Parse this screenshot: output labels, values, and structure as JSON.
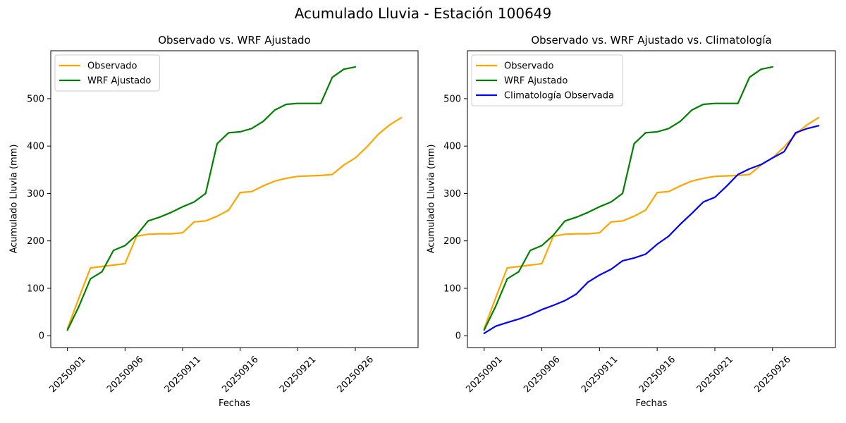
{
  "figure": {
    "title": "Acumulado Lluvia - Estación 100649"
  },
  "chart_data": [
    {
      "type": "line",
      "title": "Observado vs. WRF Ajustado",
      "xlabel": "Fechas",
      "ylabel": "Acumulado Lluvia (mm)",
      "x_tick_labels": [
        "20250901",
        "20250906",
        "20250911",
        "20250916",
        "20250921",
        "20250926"
      ],
      "x_tick_days": [
        1,
        6,
        11,
        16,
        21,
        26
      ],
      "y_ticks": [
        0,
        100,
        200,
        300,
        400,
        500
      ],
      "xlim": [
        -0.45,
        31.45
      ],
      "ylim": [
        -25,
        601
      ],
      "grid": false,
      "legend_position": "upper-left",
      "series": [
        {
          "name": "Observado",
          "color": "#FFA500",
          "start_day": 1,
          "values": [
            15,
            80,
            143,
            146,
            149,
            152,
            210,
            214,
            215,
            215,
            217,
            240,
            242,
            252,
            265,
            302,
            304,
            316,
            326,
            332,
            336,
            337,
            338,
            340,
            360,
            375,
            398,
            425,
            445,
            460
          ]
        },
        {
          "name": "WRF Ajustado",
          "color": "#008000",
          "start_day": 1,
          "values": [
            12,
            62,
            120,
            135,
            180,
            190,
            212,
            242,
            250,
            260,
            272,
            282,
            300,
            405,
            428,
            430,
            437,
            452,
            476,
            488,
            490,
            490,
            490,
            545,
            562,
            567
          ]
        }
      ]
    },
    {
      "type": "line",
      "title": "Observado vs. WRF Ajustado vs. Climatología",
      "xlabel": "Fechas",
      "ylabel": "Acumulado Lluvia (mm)",
      "x_tick_labels": [
        "20250901",
        "20250906",
        "20250911",
        "20250916",
        "20250921",
        "20250926"
      ],
      "x_tick_days": [
        1,
        6,
        11,
        16,
        21,
        26
      ],
      "y_ticks": [
        0,
        100,
        200,
        300,
        400,
        500
      ],
      "xlim": [
        -0.45,
        31.45
      ],
      "ylim": [
        -25,
        601
      ],
      "grid": false,
      "legend_position": "upper-left",
      "series": [
        {
          "name": "Observado",
          "color": "#FFA500",
          "start_day": 1,
          "values": [
            15,
            80,
            143,
            146,
            149,
            152,
            210,
            214,
            215,
            215,
            217,
            240,
            242,
            252,
            265,
            302,
            304,
            316,
            326,
            332,
            336,
            337,
            338,
            340,
            360,
            375,
            398,
            425,
            445,
            460
          ]
        },
        {
          "name": "WRF Ajustado",
          "color": "#008000",
          "start_day": 1,
          "values": [
            12,
            62,
            120,
            135,
            180,
            190,
            212,
            242,
            250,
            260,
            272,
            282,
            300,
            405,
            428,
            430,
            437,
            452,
            476,
            488,
            490,
            490,
            490,
            545,
            562,
            567
          ]
        },
        {
          "name": "Climatología Observada",
          "color": "#0000FF",
          "start_day": 1,
          "values": [
            5,
            20,
            28,
            35,
            44,
            55,
            64,
            74,
            88,
            113,
            128,
            140,
            158,
            164,
            172,
            193,
            210,
            235,
            258,
            282,
            292,
            315,
            340,
            352,
            361,
            375,
            388,
            428,
            437,
            443
          ]
        }
      ]
    }
  ]
}
